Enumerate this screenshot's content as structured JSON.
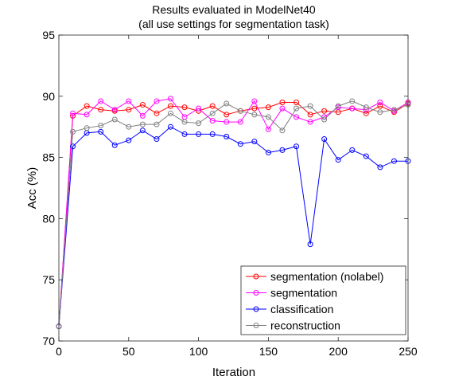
{
  "chart_data": {
    "type": "line",
    "title": "Results evaluated in ModelNet40",
    "subtitle": "(all use settings for segmentation task)",
    "xlabel": "Iteration",
    "ylabel": "Acc (%)",
    "xlim": [
      0,
      250
    ],
    "ylim": [
      70,
      95
    ],
    "xticks": [
      "0",
      "50",
      "100",
      "150",
      "200",
      "250"
    ],
    "yticks": [
      "70",
      "75",
      "80",
      "85",
      "90",
      "95"
    ],
    "grid": false,
    "legend_position": "bottom-right",
    "x": [
      0,
      10,
      20,
      30,
      40,
      50,
      60,
      70,
      80,
      90,
      100,
      110,
      120,
      130,
      140,
      150,
      160,
      170,
      180,
      190,
      200,
      210,
      220,
      230,
      240,
      250
    ],
    "series": [
      {
        "name": "segmentation (nolabel)",
        "color": "#ff0000",
        "values": [
          71.2,
          88.4,
          89.2,
          88.9,
          88.8,
          88.9,
          89.3,
          88.6,
          89.2,
          89.1,
          88.8,
          89.2,
          88.5,
          88.8,
          89.0,
          89.1,
          89.5,
          89.5,
          88.5,
          88.8,
          88.7,
          89.0,
          88.6,
          89.2,
          88.7,
          89.4
        ]
      },
      {
        "name": "segmentation",
        "color": "#ff00ff",
        "values": [
          71.2,
          88.6,
          88.5,
          89.6,
          88.9,
          89.6,
          88.4,
          89.6,
          89.8,
          88.3,
          89.0,
          88.0,
          87.9,
          87.9,
          89.6,
          87.3,
          89.0,
          88.3,
          87.9,
          88.3,
          89.1,
          89.0,
          88.9,
          89.5,
          88.8,
          89.5
        ]
      },
      {
        "name": "classification",
        "color": "#0000ff",
        "values": [
          71.2,
          85.9,
          87.0,
          87.1,
          86.0,
          86.4,
          87.2,
          86.5,
          87.5,
          86.9,
          86.9,
          86.9,
          86.7,
          86.1,
          86.3,
          85.4,
          85.6,
          85.9,
          77.9,
          86.5,
          84.8,
          85.6,
          85.1,
          84.2,
          84.7,
          84.7
        ]
      },
      {
        "name": "reconstruction",
        "color": "#808080",
        "values": [
          71.2,
          87.1,
          87.4,
          87.6,
          88.1,
          87.5,
          87.7,
          87.7,
          88.6,
          87.9,
          87.8,
          88.6,
          89.4,
          88.8,
          88.5,
          88.3,
          87.2,
          89.0,
          89.2,
          88.1,
          89.2,
          89.6,
          89.1,
          88.7,
          88.9,
          89.3
        ]
      }
    ]
  }
}
